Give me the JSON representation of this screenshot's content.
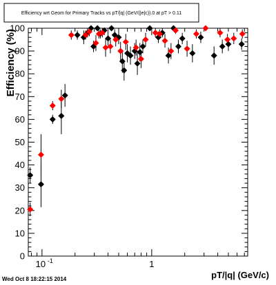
{
  "chart_data": {
    "type": "scatter",
    "title": "Efficiency wrt Geom for Primary Tracks vs pT/|q| (GeV/(|e|c)).0 at pT > 0.11",
    "xlabel": "pT/|q| (GeV/c)",
    "ylabel": "Efficiency (%)",
    "x_scale": "log",
    "xlim": [
      0.075,
      7.5
    ],
    "ylim": [
      0,
      100
    ],
    "grid": false,
    "legend": "none",
    "x_ticks": [
      {
        "value": 0.1,
        "label": "10",
        "exp": "-1"
      },
      {
        "value": 1,
        "label": "1",
        "exp": ""
      }
    ],
    "y_ticks": [
      0,
      10,
      20,
      30,
      40,
      50,
      60,
      70,
      80,
      90,
      100
    ],
    "colors": {
      "series_black": "#000000",
      "series_red": "#ff0000"
    },
    "series": [
      {
        "color": "#000000",
        "points": [
          {
            "x": 0.078,
            "y": 35.5,
            "err": 3.5
          },
          {
            "x": 0.098,
            "y": 31.5,
            "err": 10
          },
          {
            "x": 0.125,
            "y": 60,
            "err": 2
          },
          {
            "x": 0.15,
            "y": 61.5,
            "err": 8
          },
          {
            "x": 0.162,
            "y": 70.5,
            "err": 5
          },
          {
            "x": 0.21,
            "y": 97,
            "err": 2
          },
          {
            "x": 0.24,
            "y": 96,
            "err": 3
          },
          {
            "x": 0.26,
            "y": 98,
            "err": 2
          },
          {
            "x": 0.28,
            "y": 100,
            "err": 1
          },
          {
            "x": 0.295,
            "y": 92,
            "err": 2.5
          },
          {
            "x": 0.32,
            "y": 100,
            "err": 1
          },
          {
            "x": 0.34,
            "y": 97.5,
            "err": 2
          },
          {
            "x": 0.37,
            "y": 99,
            "err": 2
          },
          {
            "x": 0.4,
            "y": 95.5,
            "err": 3
          },
          {
            "x": 0.43,
            "y": 100,
            "err": 1
          },
          {
            "x": 0.46,
            "y": 97,
            "err": 2.5
          },
          {
            "x": 0.5,
            "y": 96,
            "err": 3
          },
          {
            "x": 0.54,
            "y": 85.5,
            "err": 5
          },
          {
            "x": 0.56,
            "y": 81.5,
            "err": 4.5
          },
          {
            "x": 0.6,
            "y": 89,
            "err": 4
          },
          {
            "x": 0.64,
            "y": 88,
            "err": 4
          },
          {
            "x": 0.7,
            "y": 90,
            "err": 3.5
          },
          {
            "x": 0.74,
            "y": 84.5,
            "err": 5
          },
          {
            "x": 0.78,
            "y": 89.5,
            "err": 4
          },
          {
            "x": 0.83,
            "y": 92,
            "err": 3
          },
          {
            "x": 0.96,
            "y": 100,
            "err": 1
          },
          {
            "x": 1.15,
            "y": 96,
            "err": 2.5
          },
          {
            "x": 1.25,
            "y": 98,
            "err": 2
          },
          {
            "x": 1.42,
            "y": 88,
            "err": 3.5
          },
          {
            "x": 1.58,
            "y": 100,
            "err": 1
          },
          {
            "x": 1.75,
            "y": 92,
            "err": 3
          },
          {
            "x": 1.9,
            "y": 95.5,
            "err": 2.5
          },
          {
            "x": 2.35,
            "y": 89,
            "err": 4
          },
          {
            "x": 2.8,
            "y": 96,
            "err": 2.5
          },
          {
            "x": 3.7,
            "y": 88,
            "err": 4
          },
          {
            "x": 4.4,
            "y": 92,
            "err": 3
          },
          {
            "x": 5.0,
            "y": 93,
            "err": 3
          },
          {
            "x": 6.6,
            "y": 93,
            "err": 2.5
          }
        ]
      },
      {
        "color": "#ff0000",
        "points": [
          {
            "x": 0.078,
            "y": 20.5,
            "err": 3
          },
          {
            "x": 0.098,
            "y": 44.5,
            "err": 9
          },
          {
            "x": 0.125,
            "y": 66,
            "err": 2
          },
          {
            "x": 0.15,
            "y": 69,
            "err": 4
          },
          {
            "x": 0.185,
            "y": 97,
            "err": 2
          },
          {
            "x": 0.25,
            "y": 97,
            "err": 2
          },
          {
            "x": 0.27,
            "y": 98.5,
            "err": 2
          },
          {
            "x": 0.31,
            "y": 93.5,
            "err": 3.5
          },
          {
            "x": 0.33,
            "y": 97.5,
            "err": 2
          },
          {
            "x": 0.355,
            "y": 98,
            "err": 2
          },
          {
            "x": 0.38,
            "y": 91.5,
            "err": 4
          },
          {
            "x": 0.42,
            "y": 92,
            "err": 3
          },
          {
            "x": 0.47,
            "y": 95,
            "err": 3
          },
          {
            "x": 0.52,
            "y": 90,
            "err": 4
          },
          {
            "x": 0.58,
            "y": 94,
            "err": 3.5
          },
          {
            "x": 0.72,
            "y": 91.5,
            "err": 3.5
          },
          {
            "x": 0.8,
            "y": 86.5,
            "err": 4
          },
          {
            "x": 0.88,
            "y": 95,
            "err": 3
          },
          {
            "x": 1.08,
            "y": 98,
            "err": 2
          },
          {
            "x": 1.18,
            "y": 97.5,
            "err": 2
          },
          {
            "x": 1.32,
            "y": 94.5,
            "err": 3
          },
          {
            "x": 1.5,
            "y": 90,
            "err": 3.5
          },
          {
            "x": 1.65,
            "y": 99,
            "err": 1.5
          },
          {
            "x": 2.1,
            "y": 91,
            "err": 3.5
          },
          {
            "x": 2.55,
            "y": 97.5,
            "err": 2
          },
          {
            "x": 3.1,
            "y": 100,
            "err": 1
          },
          {
            "x": 4.2,
            "y": 98,
            "err": 2
          },
          {
            "x": 4.9,
            "y": 95,
            "err": 2.5
          },
          {
            "x": 5.6,
            "y": 95.5,
            "err": 2.5
          },
          {
            "x": 6.7,
            "y": 97.5,
            "err": 2
          }
        ]
      }
    ]
  },
  "footer": {
    "timestamp": "Wed Oct  8 18:22:15 2014"
  }
}
